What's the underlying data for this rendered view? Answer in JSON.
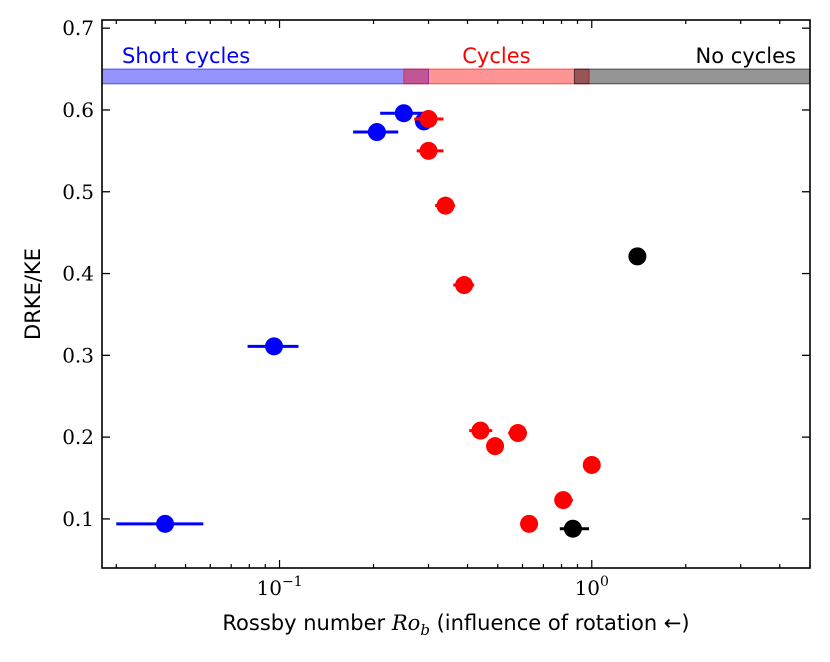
{
  "chart_data": {
    "type": "scatter",
    "title": "",
    "xlabel": "Rossby number Ro_b (influence of rotation ←)",
    "xlabel_parts": {
      "before": "Rossby number ",
      "ro": "Ro",
      "sub": "b",
      "after": " (influence of rotation ←)"
    },
    "ylabel": "DRKE/KE",
    "xscale": "log",
    "xlim": [
      0.027,
      5.0
    ],
    "ylim": [
      0.04,
      0.71
    ],
    "x_ticks": [
      {
        "value": 0.1,
        "base": "10",
        "exp": "−1"
      },
      {
        "value": 1.0,
        "base": "10",
        "exp": "0"
      }
    ],
    "y_ticks": [
      0.1,
      0.2,
      0.3,
      0.4,
      0.5,
      0.6,
      0.7
    ],
    "y_tick_labels": [
      "0.1",
      "0.2",
      "0.3",
      "0.4",
      "0.5",
      "0.6",
      "0.7"
    ],
    "regimes": [
      {
        "name": "Short cycles",
        "x_start": 0.027,
        "x_end": 0.3,
        "color": "#0000ff",
        "label_anchor": "start"
      },
      {
        "name": "Cycles",
        "x_start": 0.25,
        "x_end": 0.98,
        "color": "#ff0000",
        "label_anchor": "middle"
      },
      {
        "name": "No cycles",
        "x_start": 0.88,
        "x_end": 5.0,
        "color": "#000000",
        "label_anchor": "end"
      }
    ],
    "regime_band_y": [
      0.632,
      0.65
    ],
    "series": [
      {
        "name": "Short cycles",
        "color": "#0000ff",
        "points": [
          {
            "x": 0.043,
            "y": 0.094,
            "xerr_lo": 0.03,
            "xerr_hi": 0.057
          },
          {
            "x": 0.096,
            "y": 0.311,
            "xerr_lo": 0.079,
            "xerr_hi": 0.115
          },
          {
            "x": 0.205,
            "y": 0.573,
            "xerr_lo": 0.172,
            "xerr_hi": 0.24
          },
          {
            "x": 0.25,
            "y": 0.596,
            "xerr_lo": 0.21,
            "xerr_hi": 0.3
          },
          {
            "x": 0.29,
            "y": 0.586,
            "xerr_lo": 0.275,
            "xerr_hi": 0.305
          }
        ]
      },
      {
        "name": "Cycles",
        "color": "#ff0000",
        "points": [
          {
            "x": 0.3,
            "y": 0.589,
            "xerr_lo": 0.27,
            "xerr_hi": 0.335
          },
          {
            "x": 0.3,
            "y": 0.55,
            "xerr_lo": 0.275,
            "xerr_hi": 0.335
          },
          {
            "x": 0.34,
            "y": 0.483,
            "xerr_lo": 0.315,
            "xerr_hi": 0.365
          },
          {
            "x": 0.39,
            "y": 0.386,
            "xerr_lo": 0.36,
            "xerr_hi": 0.42
          },
          {
            "x": 0.44,
            "y": 0.208,
            "xerr_lo": 0.405,
            "xerr_hi": 0.48
          },
          {
            "x": 0.49,
            "y": 0.189,
            "xerr_lo": 0.46,
            "xerr_hi": 0.52
          },
          {
            "x": 0.58,
            "y": 0.205,
            "xerr_lo": 0.54,
            "xerr_hi": 0.62
          },
          {
            "x": 0.63,
            "y": 0.094,
            "xerr_lo": 0.59,
            "xerr_hi": 0.67
          },
          {
            "x": 0.81,
            "y": 0.123,
            "xerr_lo": 0.76,
            "xerr_hi": 0.87
          },
          {
            "x": 1.0,
            "y": 0.166,
            "xerr_lo": 0.985,
            "xerr_hi": 1.015
          }
        ]
      },
      {
        "name": "No cycles",
        "color": "#000000",
        "points": [
          {
            "x": 1.4,
            "y": 0.421,
            "xerr_lo": 1.32,
            "xerr_hi": 1.48
          },
          {
            "x": 0.87,
            "y": 0.088,
            "xerr_lo": 0.79,
            "xerr_hi": 0.98
          }
        ]
      }
    ]
  }
}
